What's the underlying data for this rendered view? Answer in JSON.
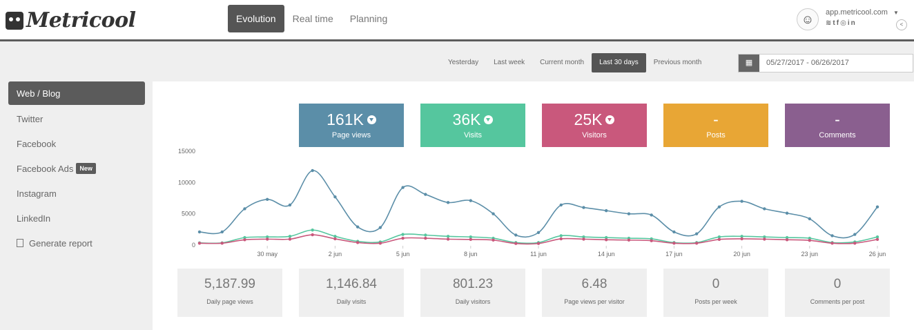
{
  "app": {
    "brand": "Metricool"
  },
  "nav": {
    "tabs": [
      {
        "label": "Evolution",
        "active": true
      },
      {
        "label": "Real time",
        "active": false
      },
      {
        "label": "Planning",
        "active": false
      }
    ]
  },
  "account": {
    "url": "app.metricool.com",
    "social_icons": [
      "rss-icon",
      "twitter-icon",
      "facebook-icon",
      "instagram-icon",
      "linkedin-icon"
    ]
  },
  "date_ranges": {
    "items": [
      {
        "label": "Yesterday",
        "active": false
      },
      {
        "label": "Last week",
        "active": false
      },
      {
        "label": "Current month",
        "active": false
      },
      {
        "label": "Last 30 days",
        "active": true
      },
      {
        "label": "Previous month",
        "active": false
      }
    ],
    "date_value": "05/27/2017 - 06/26/2017"
  },
  "sidebar": {
    "items": [
      {
        "label": "Web / Blog",
        "active": true
      },
      {
        "label": "Twitter"
      },
      {
        "label": "Facebook"
      },
      {
        "label": "Facebook Ads",
        "badge": "New"
      },
      {
        "label": "Instagram"
      },
      {
        "label": "LinkedIn"
      },
      {
        "label": "Generate report"
      }
    ]
  },
  "kpis": [
    {
      "value": "161K",
      "label": "Page views",
      "color": "#5b8ea8",
      "trend": "down"
    },
    {
      "value": "36K",
      "label": "Visits",
      "color": "#55c69e",
      "trend": "down"
    },
    {
      "value": "25K",
      "label": "Visitors",
      "color": "#c9587c",
      "trend": "down"
    },
    {
      "value": "-",
      "label": "Posts",
      "color": "#e8a635"
    },
    {
      "value": "-",
      "label": "Comments",
      "color": "#8a5f8f"
    }
  ],
  "stats": [
    {
      "value": "5,187.99",
      "label": "Daily page views"
    },
    {
      "value": "1,146.84",
      "label": "Daily visits"
    },
    {
      "value": "801.23",
      "label": "Daily visitors"
    },
    {
      "value": "6.48",
      "label": "Page views per visitor"
    },
    {
      "value": "0",
      "label": "Posts per week"
    },
    {
      "value": "0",
      "label": "Comments per post"
    }
  ],
  "chart_data": {
    "type": "line",
    "x": [
      "27 may",
      "28 may",
      "29 may",
      "30 may",
      "31 may",
      "1 jun",
      "2 jun",
      "3 jun",
      "4 jun",
      "5 jun",
      "6 jun",
      "7 jun",
      "8 jun",
      "9 jun",
      "10 jun",
      "11 jun",
      "12 jun",
      "13 jun",
      "14 jun",
      "15 jun",
      "16 jun",
      "17 jun",
      "18 jun",
      "19 jun",
      "20 jun",
      "21 jun",
      "22 jun",
      "23 jun",
      "24 jun",
      "25 jun",
      "26 jun"
    ],
    "x_tick_labels": [
      "30 may",
      "2 jun",
      "5 jun",
      "8 jun",
      "11 jun",
      "14 jun",
      "17 jun",
      "20 jun",
      "23 jun",
      "26 jun"
    ],
    "y_ticks": [
      "0",
      "5000",
      "10000",
      "15000"
    ],
    "ylim": [
      0,
      15000
    ],
    "series": [
      {
        "color": "#5b8ea8",
        "values": [
          2100,
          2100,
          5800,
          7300,
          6400,
          11900,
          7700,
          2900,
          2800,
          9200,
          8100,
          6800,
          7100,
          5000,
          1600,
          2000,
          6400,
          6000,
          5500,
          5000,
          4800,
          2100,
          1800,
          6100,
          7000,
          5800,
          5100,
          4200,
          1500,
          1700,
          6100
        ]
      },
      {
        "color": "#55c69e",
        "values": [
          350,
          350,
          1200,
          1300,
          1400,
          2400,
          1400,
          600,
          500,
          1700,
          1600,
          1400,
          1300,
          1100,
          400,
          400,
          1500,
          1300,
          1200,
          1100,
          1000,
          400,
          400,
          1300,
          1400,
          1300,
          1200,
          1100,
          400,
          500,
          1300
        ]
      },
      {
        "color": "#c9587c",
        "values": [
          300,
          300,
          850,
          950,
          950,
          1650,
          1000,
          400,
          300,
          1100,
          1100,
          950,
          900,
          800,
          250,
          250,
          1000,
          950,
          850,
          800,
          700,
          300,
          300,
          900,
          1000,
          950,
          850,
          750,
          300,
          300,
          900
        ]
      }
    ]
  }
}
